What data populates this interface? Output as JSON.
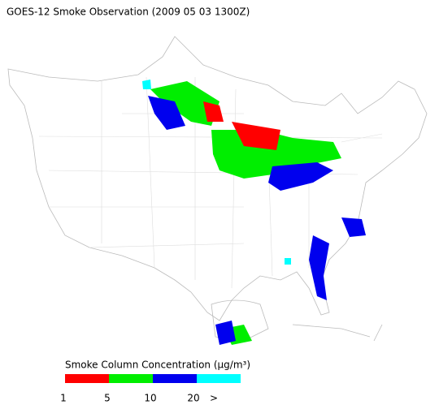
{
  "title": "GOES-12 Smoke Observation (2009 05 03  1300Z)",
  "legend": {
    "title": "Smoke Column Concentration (μg/m³)",
    "colors": [
      "#ff0000",
      "#00ee00",
      "#0000ee",
      "#00ffff"
    ],
    "labels": [
      "1",
      "5",
      "10",
      "20",
      ">"
    ]
  }
}
